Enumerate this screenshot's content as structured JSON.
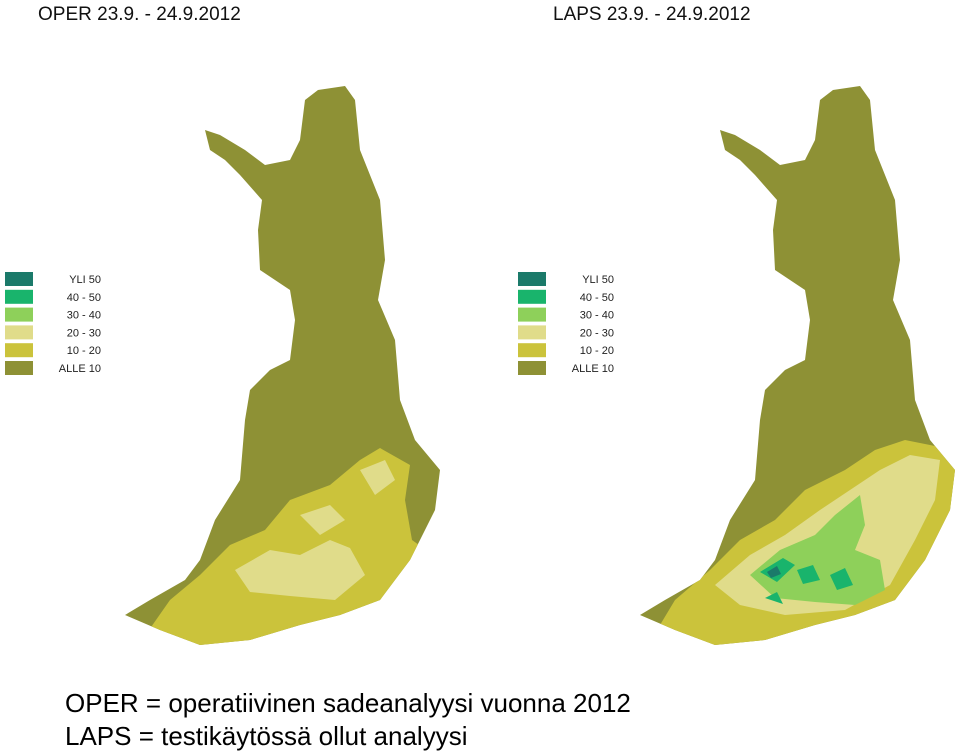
{
  "maps": [
    {
      "title": "OPER 23.9. - 24.9.2012"
    },
    {
      "title": "LAPS 23.9. - 24.9.2012"
    }
  ],
  "legend": {
    "items": [
      {
        "label": "YLI 50",
        "color": "#1b7a6a"
      },
      {
        "label": "40 - 50",
        "color": "#19b46c"
      },
      {
        "label": "30 - 40",
        "color": "#8ed05a"
      },
      {
        "label": "20 - 30",
        "color": "#e0dc8a"
      },
      {
        "label": "10 - 20",
        "color": "#cbc33b"
      },
      {
        "label": "ALLE 10",
        "color": "#8e9135"
      }
    ]
  },
  "caption": {
    "lines": [
      "OPER = operatiivinen sadeanalyysi vuonna 2012",
      "LAPS = testikäytössä ollut analyysi"
    ]
  }
}
